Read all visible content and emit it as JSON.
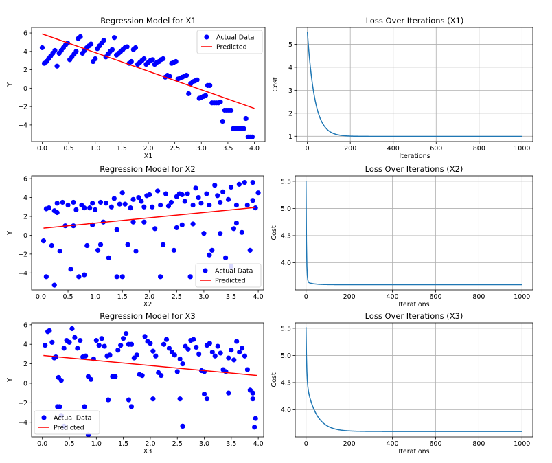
{
  "colors": {
    "scatter": "#0000ff",
    "predicted": "#ff0000",
    "loss": "#1f77b4",
    "axis": "#000000",
    "grid": "#b0b0b0"
  },
  "chart_data": [
    {
      "id": "reg1",
      "type": "scatter",
      "title": "Regression Model for X1",
      "xlabel": "X1",
      "ylabel": "Y",
      "xlim": [
        -0.2,
        4.2
      ],
      "ylim": [
        -5.8,
        6.6
      ],
      "xticks": [
        0.0,
        0.5,
        1.0,
        1.5,
        2.0,
        2.5,
        3.0,
        3.5,
        4.0
      ],
      "xtick_labels": [
        "0.0",
        "0.5",
        "1.0",
        "1.5",
        "2.0",
        "2.5",
        "3.0",
        "3.5",
        "4.0"
      ],
      "yticks": [
        -4,
        -2,
        0,
        2,
        4,
        6
      ],
      "ytick_labels": [
        "−4",
        "−2",
        "0",
        "2",
        "4",
        "6"
      ],
      "legend": {
        "position": "upper-right",
        "entries": [
          "Actual Data",
          "Predicted"
        ]
      },
      "line": {
        "name": "Predicted",
        "x": [
          0.0,
          4.0
        ],
        "y": [
          5.9,
          -2.2
        ]
      },
      "points": {
        "name": "Actual Data",
        "x": [
          0.0,
          0.04,
          0.08,
          0.12,
          0.16,
          0.2,
          0.24,
          0.28,
          0.32,
          0.36,
          0.4,
          0.44,
          0.48,
          0.52,
          0.56,
          0.6,
          0.64,
          0.68,
          0.72,
          0.76,
          0.8,
          0.84,
          0.88,
          0.92,
          0.96,
          1.0,
          1.04,
          1.08,
          1.12,
          1.16,
          1.2,
          1.24,
          1.28,
          1.32,
          1.36,
          1.4,
          1.44,
          1.48,
          1.52,
          1.56,
          1.6,
          1.64,
          1.68,
          1.72,
          1.76,
          1.8,
          1.84,
          1.88,
          1.92,
          1.96,
          2.0,
          2.04,
          2.08,
          2.12,
          2.16,
          2.2,
          2.24,
          2.28,
          2.32,
          2.36,
          2.4,
          2.44,
          2.48,
          2.52,
          2.56,
          2.6,
          2.64,
          2.68,
          2.72,
          2.76,
          2.8,
          2.84,
          2.88,
          2.92,
          2.96,
          3.0,
          3.04,
          3.08,
          3.12,
          3.16,
          3.2,
          3.24,
          3.28,
          3.32,
          3.36,
          3.4,
          3.44,
          3.48,
          3.52,
          3.56,
          3.6,
          3.64,
          3.68,
          3.72,
          3.76,
          3.8,
          3.84,
          3.88,
          3.92,
          3.96
        ],
        "y": [
          4.4,
          2.7,
          2.9,
          3.2,
          3.5,
          3.8,
          4.1,
          2.4,
          3.8,
          4.1,
          4.4,
          4.7,
          4.9,
          3.1,
          3.4,
          3.7,
          4.0,
          5.4,
          5.6,
          3.8,
          4.1,
          4.4,
          4.6,
          4.8,
          2.9,
          3.2,
          4.3,
          4.6,
          4.9,
          5.2,
          3.4,
          3.7,
          4.0,
          4.2,
          5.5,
          3.6,
          3.8,
          4.0,
          4.2,
          4.4,
          4.5,
          2.7,
          2.9,
          4.2,
          4.4,
          2.6,
          2.8,
          3.0,
          3.2,
          2.6,
          2.8,
          3.0,
          3.1,
          2.6,
          2.8,
          2.9,
          3.1,
          3.2,
          1.2,
          1.4,
          1.3,
          2.7,
          2.8,
          2.9,
          1.0,
          1.1,
          1.2,
          1.3,
          1.4,
          -0.6,
          0.5,
          0.7,
          0.8,
          0.9,
          -1.1,
          -1.0,
          -0.9,
          -0.8,
          0.3,
          0.3,
          -1.6,
          -1.6,
          -1.6,
          -1.6,
          -1.5,
          -3.6,
          -2.4,
          -2.4,
          -2.4,
          -2.4,
          -4.4,
          -4.4,
          -4.4,
          -4.4,
          -4.4,
          -4.4,
          -3.3,
          -5.3,
          -5.3,
          -5.3
        ]
      }
    },
    {
      "id": "loss1",
      "type": "line",
      "title": "Loss Over Iterations (X1)",
      "xlabel": "Iterations",
      "ylabel": "Cost",
      "xlim": [
        -50,
        1050
      ],
      "ylim": [
        0.77,
        5.73
      ],
      "xticks": [
        0,
        200,
        400,
        600,
        800,
        1000
      ],
      "xtick_labels": [
        "0",
        "200",
        "400",
        "600",
        "800",
        "1000"
      ],
      "yticks": [
        1,
        2,
        3,
        4,
        5
      ],
      "ytick_labels": [
        "1",
        "2",
        "3",
        "4",
        "5"
      ],
      "curve": {
        "name": "Cost",
        "start": 5.55,
        "end": 0.995,
        "fast_amp": 0.0,
        "fast_tau": 1,
        "tau": 34,
        "iterations": 1000
      }
    },
    {
      "id": "reg2",
      "type": "scatter",
      "title": "Regression Model for X2",
      "xlabel": "X2",
      "ylabel": "Y",
      "xlim": [
        -0.17,
        4.1
      ],
      "ylim": [
        -5.8,
        6.3
      ],
      "xticks": [
        0.0,
        0.5,
        1.0,
        1.5,
        2.0,
        2.5,
        3.0,
        3.5,
        4.0
      ],
      "xtick_labels": [
        "0.0",
        "0.5",
        "1.0",
        "1.5",
        "2.0",
        "2.5",
        "3.0",
        "3.5",
        "4.0"
      ],
      "yticks": [
        -4,
        -2,
        0,
        2,
        4,
        6
      ],
      "ytick_labels": [
        "−4",
        "−2",
        "0",
        "2",
        "4",
        "6"
      ],
      "legend": {
        "position": "lower-right",
        "entries": [
          "Actual Data",
          "Predicted"
        ]
      },
      "line": {
        "name": "Predicted",
        "x": [
          0.05,
          3.95
        ],
        "y": [
          0.75,
          2.95
        ]
      },
      "points": {
        "name": "Actual Data",
        "x": [
          0.05,
          0.1,
          0.15,
          0.2,
          0.25,
          0.3,
          0.35,
          0.4,
          0.45,
          0.5,
          0.55,
          0.6,
          0.65,
          0.7,
          0.75,
          0.8,
          0.85,
          0.9,
          0.95,
          1.0,
          1.05,
          1.1,
          1.15,
          1.2,
          1.25,
          1.3,
          1.35,
          1.4,
          1.45,
          1.5,
          1.55,
          1.6,
          1.65,
          1.7,
          1.75,
          1.8,
          1.85,
          1.9,
          1.95,
          2.0,
          2.05,
          2.1,
          2.15,
          2.2,
          2.25,
          2.3,
          2.35,
          2.4,
          2.45,
          2.5,
          2.55,
          2.6,
          2.65,
          2.7,
          2.75,
          2.8,
          2.85,
          2.9,
          2.95,
          3.0,
          3.05,
          3.1,
          3.15,
          3.2,
          3.25,
          3.3,
          3.35,
          3.4,
          3.45,
          3.5,
          3.55,
          3.6,
          3.65,
          3.7,
          3.75,
          3.8,
          3.85,
          3.9,
          3.95,
          4.0,
          0.1,
          0.3,
          0.6,
          0.8,
          1.1,
          1.4,
          1.5,
          1.9,
          2.2,
          2.5,
          2.8,
          3.1,
          3.3,
          3.6,
          3.9,
          0.25,
          0.95,
          1.7,
          2.6,
          3.5
        ],
        "y": [
          -0.6,
          2.8,
          2.9,
          -1.1,
          2.6,
          3.4,
          -1.7,
          3.5,
          1.0,
          3.2,
          -3.6,
          3.5,
          2.7,
          -4.4,
          3.2,
          2.9,
          -1.1,
          2.9,
          3.4,
          2.7,
          -1.6,
          3.5,
          1.4,
          3.4,
          -2.4,
          3.0,
          3.9,
          -4.4,
          3.3,
          4.5,
          3.3,
          -1.0,
          2.9,
          3.8,
          -1.7,
          4.0,
          3.6,
          3.0,
          4.2,
          4.3,
          3.0,
          0.7,
          4.7,
          3.2,
          -1.0,
          4.4,
          3.1,
          3.5,
          -1.6,
          4.1,
          4.4,
          1.1,
          3.6,
          4.4,
          -4.4,
          3.2,
          5.0,
          4.0,
          3.4,
          0.2,
          4.4,
          3.2,
          -1.6,
          5.3,
          4.2,
          3.5,
          4.6,
          -2.4,
          3.8,
          5.1,
          0.7,
          3.2,
          5.4,
          0.3,
          5.6,
          3.2,
          -1.6,
          5.6,
          2.9,
          4.5,
          -4.4,
          2.4,
          1.0,
          -4.2,
          -1.0,
          0.6,
          -4.4,
          1.4,
          -4.4,
          0.8,
          1.2,
          -2.1,
          0.2,
          1.3,
          3.7,
          -5.3,
          1.1,
          1.4,
          4.3,
          -3.3
        ]
      }
    },
    {
      "id": "loss2",
      "type": "line",
      "title": "Loss Over Iterations (X2)",
      "xlabel": "Iterations",
      "ylabel": "Cost",
      "xlim": [
        -50,
        1050
      ],
      "ylim": [
        3.5,
        5.6
      ],
      "xticks": [
        0,
        200,
        400,
        600,
        800,
        1000
      ],
      "xtick_labels": [
        "0",
        "200",
        "400",
        "600",
        "800",
        "1000"
      ],
      "yticks": [
        4.0,
        4.5,
        5.0,
        5.5
      ],
      "ytick_labels": [
        "4.0",
        "4.5",
        "5.0",
        "5.5"
      ],
      "curve": {
        "name": "Cost",
        "start": 5.5,
        "end": 3.595,
        "fast_amp": 1.85,
        "fast_tau": 2.2,
        "tau": 30,
        "iterations": 1000
      }
    },
    {
      "id": "reg3",
      "type": "scatter",
      "title": "Regression Model for X3",
      "xlabel": "X3",
      "ylabel": "Y",
      "xlim": [
        -0.2,
        4.1
      ],
      "ylim": [
        -5.5,
        6.2
      ],
      "xticks": [
        0.0,
        0.5,
        1.0,
        1.5,
        2.0,
        2.5,
        3.0,
        3.5,
        4.0
      ],
      "xtick_labels": [
        "0.0",
        "0.5",
        "1.0",
        "1.5",
        "2.0",
        "2.5",
        "3.0",
        "3.5",
        "4.0"
      ],
      "yticks": [
        -4,
        -2,
        0,
        2,
        4,
        6
      ],
      "ytick_labels": [
        "−4",
        "−2",
        "0",
        "2",
        "4",
        "6"
      ],
      "legend": {
        "position": "lower-left",
        "entries": [
          "Actual Data",
          "Predicted"
        ]
      },
      "line": {
        "name": "Predicted",
        "x": [
          0.02,
          3.98
        ],
        "y": [
          2.85,
          0.8
        ]
      },
      "points": {
        "name": "Actual Data",
        "x": [
          0.05,
          0.1,
          0.13,
          0.18,
          0.22,
          0.25,
          0.3,
          0.35,
          0.4,
          0.45,
          0.5,
          0.55,
          0.6,
          0.65,
          0.7,
          0.75,
          0.8,
          0.85,
          0.9,
          0.95,
          1.0,
          1.05,
          1.1,
          1.15,
          1.2,
          1.25,
          1.3,
          1.35,
          1.4,
          1.45,
          1.5,
          1.55,
          1.6,
          1.65,
          1.7,
          1.75,
          1.8,
          1.85,
          1.9,
          1.95,
          2.0,
          2.05,
          2.1,
          2.15,
          2.2,
          2.25,
          2.3,
          2.35,
          2.4,
          2.45,
          2.5,
          2.55,
          2.6,
          2.65,
          2.7,
          2.75,
          2.8,
          2.85,
          2.9,
          2.95,
          3.0,
          3.05,
          3.1,
          3.15,
          3.2,
          3.25,
          3.3,
          3.35,
          3.4,
          3.45,
          3.5,
          3.55,
          3.6,
          3.65,
          3.7,
          3.75,
          3.8,
          3.85,
          3.9,
          3.95,
          0.28,
          0.32,
          0.78,
          1.22,
          1.6,
          1.65,
          2.05,
          2.55,
          2.6,
          3.0,
          3.05,
          3.45,
          3.9,
          3.93,
          0.35,
          0.4,
          0.85,
          2.6
        ],
        "y": [
          3.9,
          5.3,
          5.4,
          4.2,
          2.6,
          2.7,
          0.6,
          0.3,
          3.6,
          4.4,
          4.2,
          5.6,
          4.7,
          3.6,
          4.4,
          2.7,
          2.8,
          0.7,
          0.4,
          2.5,
          4.4,
          3.9,
          4.6,
          3.8,
          2.8,
          2.9,
          0.7,
          0.7,
          3.4,
          3.9,
          4.6,
          5.1,
          4.0,
          4.0,
          2.6,
          2.9,
          0.9,
          0.8,
          4.8,
          4.3,
          4.1,
          3.3,
          2.8,
          1.1,
          0.8,
          4.0,
          4.5,
          3.6,
          3.2,
          2.9,
          1.2,
          2.5,
          2.0,
          3.8,
          3.5,
          4.4,
          4.5,
          3.7,
          3.0,
          1.3,
          1.2,
          3.9,
          4.1,
          3.2,
          2.8,
          3.8,
          3.1,
          1.4,
          1.2,
          2.6,
          3.4,
          2.4,
          4.3,
          3.2,
          3.6,
          2.8,
          1.4,
          -0.7,
          -1.0,
          -3.6,
          -2.4,
          -2.4,
          -2.4,
          -1.7,
          -1.7,
          -2.4,
          -1.6,
          -1.6,
          -4.4,
          -1.1,
          -1.6,
          -1.0,
          -1.6,
          -4.5,
          -3.3,
          -4.4,
          -5.3,
          -4.4
        ]
      }
    },
    {
      "id": "loss3",
      "type": "line",
      "title": "Loss Over Iterations (X3)",
      "xlabel": "Iterations",
      "ylabel": "Cost",
      "xlim": [
        -50,
        1050
      ],
      "ylim": [
        3.5,
        5.6
      ],
      "xticks": [
        0,
        200,
        400,
        600,
        800,
        1000
      ],
      "xtick_labels": [
        "0",
        "200",
        "400",
        "600",
        "800",
        "1000"
      ],
      "yticks": [
        4.0,
        4.5,
        5.0,
        5.5
      ],
      "ytick_labels": [
        "4.0",
        "4.5",
        "5.0",
        "5.5"
      ],
      "curve": {
        "name": "Cost",
        "start": 5.52,
        "end": 3.6,
        "fast_amp": 1.0,
        "fast_tau": 3,
        "tau": 45,
        "iterations": 1000
      }
    }
  ]
}
